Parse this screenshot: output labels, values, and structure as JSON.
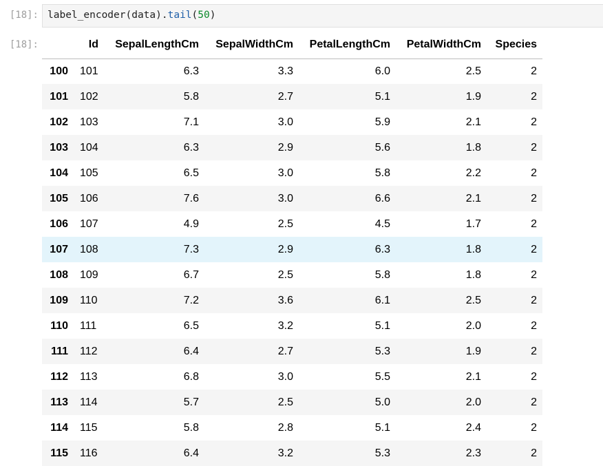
{
  "input_cell": {
    "prompt": "[18]:",
    "code_prefix": "label_encoder(data).",
    "code_method": "tail",
    "code_paren_open": "(",
    "code_number": "50",
    "code_paren_close": ")"
  },
  "output_cell": {
    "prompt": "[18]:",
    "columns": [
      "",
      "Id",
      "SepalLengthCm",
      "SepalWidthCm",
      "PetalLengthCm",
      "PetalWidthCm",
      "Species"
    ],
    "rows": [
      {
        "index": "100",
        "id": "101",
        "sepal_length": "6.3",
        "sepal_width": "3.3",
        "petal_length": "6.0",
        "petal_width": "2.5",
        "species": "2"
      },
      {
        "index": "101",
        "id": "102",
        "sepal_length": "5.8",
        "sepal_width": "2.7",
        "petal_length": "5.1",
        "petal_width": "1.9",
        "species": "2"
      },
      {
        "index": "102",
        "id": "103",
        "sepal_length": "7.1",
        "sepal_width": "3.0",
        "petal_length": "5.9",
        "petal_width": "2.1",
        "species": "2"
      },
      {
        "index": "103",
        "id": "104",
        "sepal_length": "6.3",
        "sepal_width": "2.9",
        "petal_length": "5.6",
        "petal_width": "1.8",
        "species": "2"
      },
      {
        "index": "104",
        "id": "105",
        "sepal_length": "6.5",
        "sepal_width": "3.0",
        "petal_length": "5.8",
        "petal_width": "2.2",
        "species": "2"
      },
      {
        "index": "105",
        "id": "106",
        "sepal_length": "7.6",
        "sepal_width": "3.0",
        "petal_length": "6.6",
        "petal_width": "2.1",
        "species": "2"
      },
      {
        "index": "106",
        "id": "107",
        "sepal_length": "4.9",
        "sepal_width": "2.5",
        "petal_length": "4.5",
        "petal_width": "1.7",
        "species": "2"
      },
      {
        "index": "107",
        "id": "108",
        "sepal_length": "7.3",
        "sepal_width": "2.9",
        "petal_length": "6.3",
        "petal_width": "1.8",
        "species": "2"
      },
      {
        "index": "108",
        "id": "109",
        "sepal_length": "6.7",
        "sepal_width": "2.5",
        "petal_length": "5.8",
        "petal_width": "1.8",
        "species": "2"
      },
      {
        "index": "109",
        "id": "110",
        "sepal_length": "7.2",
        "sepal_width": "3.6",
        "petal_length": "6.1",
        "petal_width": "2.5",
        "species": "2"
      },
      {
        "index": "110",
        "id": "111",
        "sepal_length": "6.5",
        "sepal_width": "3.2",
        "petal_length": "5.1",
        "petal_width": "2.0",
        "species": "2"
      },
      {
        "index": "111",
        "id": "112",
        "sepal_length": "6.4",
        "sepal_width": "2.7",
        "petal_length": "5.3",
        "petal_width": "1.9",
        "species": "2"
      },
      {
        "index": "112",
        "id": "113",
        "sepal_length": "6.8",
        "sepal_width": "3.0",
        "petal_length": "5.5",
        "petal_width": "2.1",
        "species": "2"
      },
      {
        "index": "113",
        "id": "114",
        "sepal_length": "5.7",
        "sepal_width": "2.5",
        "petal_length": "5.0",
        "petal_width": "2.0",
        "species": "2"
      },
      {
        "index": "114",
        "id": "115",
        "sepal_length": "5.8",
        "sepal_width": "2.8",
        "petal_length": "5.1",
        "petal_width": "2.4",
        "species": "2"
      },
      {
        "index": "115",
        "id": "116",
        "sepal_length": "6.4",
        "sepal_width": "3.2",
        "petal_length": "5.3",
        "petal_width": "2.3",
        "species": "2"
      }
    ],
    "hovered_row_index": "107"
  },
  "colors": {
    "prompt": "#9e9e9e",
    "code_background": "#f5f5f5",
    "method_token": "#1f5fa8",
    "number_token": "#0b8a2a",
    "stripe_row": "#f5f5f5",
    "hover_row": "#e3f4fb"
  }
}
